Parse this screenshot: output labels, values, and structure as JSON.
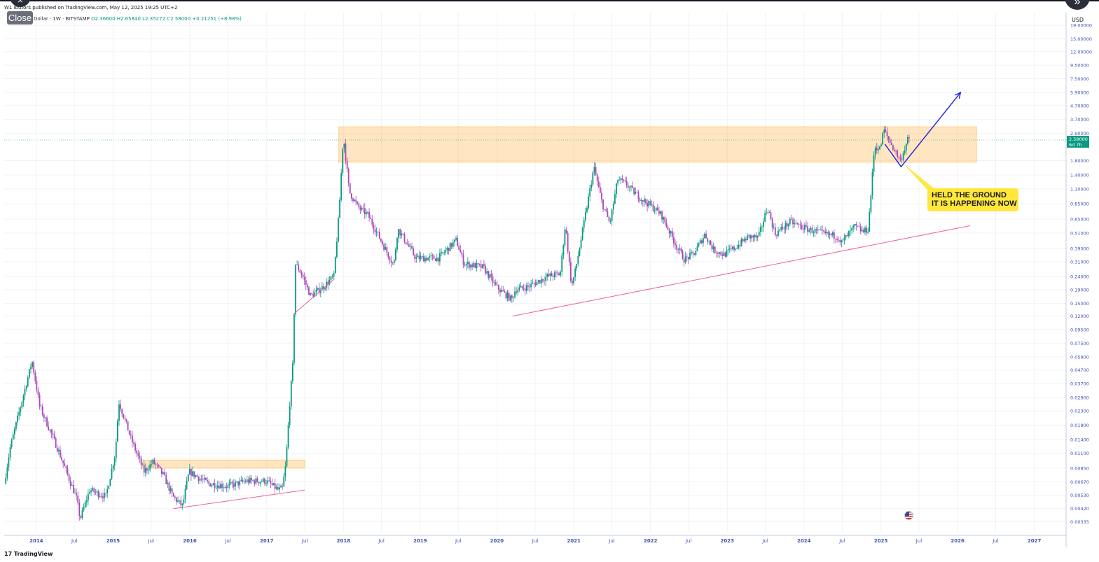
{
  "header": {
    "published_line": "W1  ibutors published on TradingView.com, May 12, 2025 19:25 UTC+2",
    "symbol_line": "Dollar · 1W · BITSTAMP",
    "ohlc": "O2.36600  H2.65840  L2.35272  C2.58000  +0.21251 (+8.98%)",
    "close_button": "Close",
    "close_icon": "×",
    "expand_icon": "»"
  },
  "footer": {
    "logo": "TradingView"
  },
  "callout": {
    "line1": "HELD THE GROUND",
    "line2": "IT IS HAPPENING NOW",
    "color": "#ffe83b"
  },
  "price_badge": {
    "price": "2.58000",
    "countdown": "6d 7h",
    "color": "#089981"
  },
  "chart_data": {
    "type": "candlestick",
    "title": "",
    "currency": "USD",
    "scale": "log",
    "grid": true,
    "bull_color": "#089981",
    "bear_color": "#ab47bc",
    "y_ticks": [
      "19.00000",
      "15.00000",
      "12.00000",
      "9.50000",
      "7.50000",
      "5.90000",
      "4.70000",
      "3.70000",
      "2.90000",
      "1.80000",
      "1.40000",
      "1.10000",
      "0.85000",
      "0.65000",
      "0.51000",
      "0.39000",
      "0.31000",
      "0.24000",
      "0.19000",
      "0.15000",
      "0.12000",
      "0.09500",
      "0.07500",
      "0.05900",
      "0.04700",
      "0.03700",
      "0.02900",
      "0.02300",
      "0.01800",
      "0.01400",
      "0.01100",
      "0.00850",
      "0.00670",
      "0.00530",
      "0.00420",
      "0.00335"
    ],
    "x_ticks": [
      "2014",
      "Jul",
      "2015",
      "Jul",
      "2016",
      "Jul",
      "2017",
      "Jul",
      "2018",
      "Jul",
      "2019",
      "Jul",
      "2020",
      "Jul",
      "2021",
      "Jul",
      "2022",
      "Jul",
      "2023",
      "Jul",
      "2024",
      "Jul",
      "2025",
      "Jul",
      "2026",
      "Jul",
      "2027"
    ],
    "x_range": [
      "2013-08",
      "2027-06"
    ],
    "y_range": [
      0.0028,
      21
    ],
    "anchors": [
      [
        "2013-08-05",
        0.0065
      ],
      [
        "2013-09-01",
        0.012
      ],
      [
        "2013-12-15",
        0.055
      ],
      [
        "2014-01-20",
        0.025
      ],
      [
        "2014-04-15",
        0.012
      ],
      [
        "2014-07-15",
        0.005
      ],
      [
        "2014-08-01",
        0.0035
      ],
      [
        "2014-09-15",
        0.0058
      ],
      [
        "2014-12-01",
        0.0052
      ],
      [
        "2015-01-15",
        0.011
      ],
      [
        "2015-02-01",
        0.027
      ],
      [
        "2015-04-01",
        0.014
      ],
      [
        "2015-06-01",
        0.008
      ],
      [
        "2015-07-15",
        0.0095
      ],
      [
        "2015-09-01",
        0.0075
      ],
      [
        "2015-10-15",
        0.0052
      ],
      [
        "2015-12-01",
        0.0044
      ],
      [
        "2016-01-01",
        0.008
      ],
      [
        "2016-04-01",
        0.0065
      ],
      [
        "2016-07-01",
        0.0062
      ],
      [
        "2016-10-01",
        0.0068
      ],
      [
        "2017-01-01",
        0.0068
      ],
      [
        "2017-03-01",
        0.0058
      ],
      [
        "2017-03-20",
        0.006
      ],
      [
        "2017-04-05",
        0.009
      ],
      [
        "2017-04-25",
        0.028
      ],
      [
        "2017-05-10",
        0.055
      ],
      [
        "2017-05-20",
        0.3
      ],
      [
        "2017-06-20",
        0.25
      ],
      [
        "2017-08-01",
        0.17
      ],
      [
        "2017-10-01",
        0.2
      ],
      [
        "2017-11-20",
        0.24
      ],
      [
        "2017-12-15",
        0.75
      ],
      [
        "2018-01-04",
        2.8
      ],
      [
        "2018-02-01",
        1.05
      ],
      [
        "2018-03-15",
        0.8
      ],
      [
        "2018-05-01",
        0.7
      ],
      [
        "2018-07-01",
        0.45
      ],
      [
        "2018-09-01",
        0.29
      ],
      [
        "2018-09-20",
        0.55
      ],
      [
        "2018-12-15",
        0.33
      ],
      [
        "2019-04-01",
        0.33
      ],
      [
        "2019-06-25",
        0.45
      ],
      [
        "2019-08-01",
        0.3
      ],
      [
        "2019-11-01",
        0.28
      ],
      [
        "2020-01-01",
        0.2
      ],
      [
        "2020-03-15",
        0.16
      ],
      [
        "2020-04-01",
        0.19
      ],
      [
        "2020-06-01",
        0.2
      ],
      [
        "2020-09-01",
        0.24
      ],
      [
        "2020-11-01",
        0.25
      ],
      [
        "2020-11-25",
        0.6
      ],
      [
        "2020-12-25",
        0.2
      ],
      [
        "2021-01-15",
        0.28
      ],
      [
        "2021-04-10",
        1.6
      ],
      [
        "2021-05-20",
        0.85
      ],
      [
        "2021-06-25",
        0.6
      ],
      [
        "2021-08-01",
        1.3
      ],
      [
        "2021-09-10",
        1.2
      ],
      [
        "2021-10-15",
        1.05
      ],
      [
        "2021-12-01",
        0.9
      ],
      [
        "2022-01-15",
        0.8
      ],
      [
        "2022-02-25",
        0.7
      ],
      [
        "2022-05-10",
        0.4
      ],
      [
        "2022-06-15",
        0.32
      ],
      [
        "2022-08-01",
        0.36
      ],
      [
        "2022-09-20",
        0.5
      ],
      [
        "2022-11-01",
        0.38
      ],
      [
        "2022-12-20",
        0.35
      ],
      [
        "2023-02-15",
        0.4
      ],
      [
        "2023-04-15",
        0.48
      ],
      [
        "2023-06-01",
        0.47
      ],
      [
        "2023-07-15",
        0.8
      ],
      [
        "2023-08-20",
        0.5
      ],
      [
        "2023-11-01",
        0.62
      ],
      [
        "2024-01-15",
        0.55
      ],
      [
        "2024-04-15",
        0.5
      ],
      [
        "2024-06-15",
        0.48
      ],
      [
        "2024-07-01",
        0.43
      ],
      [
        "2024-09-01",
        0.57
      ],
      [
        "2024-10-15",
        0.52
      ],
      [
        "2024-11-05",
        0.55
      ],
      [
        "2024-11-20",
        1.1
      ],
      [
        "2024-12-05",
        2.3
      ],
      [
        "2025-01-01",
        2.2
      ],
      [
        "2025-01-18",
        3.1
      ],
      [
        "2025-02-10",
        2.6
      ],
      [
        "2025-03-01",
        2.3
      ],
      [
        "2025-04-07",
        1.8
      ],
      [
        "2025-05-12",
        2.58
      ]
    ]
  },
  "annotations": {
    "zone_top": {
      "y_range": [
        1.75,
        3.25
      ],
      "x_range": [
        "2017-12-10",
        "2026-04-01"
      ]
    },
    "zone_bottom": {
      "y_range": [
        0.0085,
        0.0098
      ],
      "x_range": [
        "2015-05-15",
        "2017-07-01"
      ]
    },
    "trendline_bottom": {
      "from": [
        "2015-10-15",
        0.0042
      ],
      "to": [
        "2017-07-01",
        0.0058
      ]
    },
    "trendline_2017": {
      "from": [
        "2017-05-10",
        0.125
      ],
      "to": [
        "2017-11-20",
        0.23
      ]
    },
    "trendline_main": {
      "from": [
        "2020-03-15",
        0.12
      ],
      "to": [
        "2026-03-01",
        0.58
      ]
    },
    "projection": {
      "points": [
        [
          "2025-01-20",
          2.4
        ],
        [
          "2025-04-07",
          1.62
        ],
        [
          "2026-01-15",
          5.9
        ]
      ]
    }
  }
}
